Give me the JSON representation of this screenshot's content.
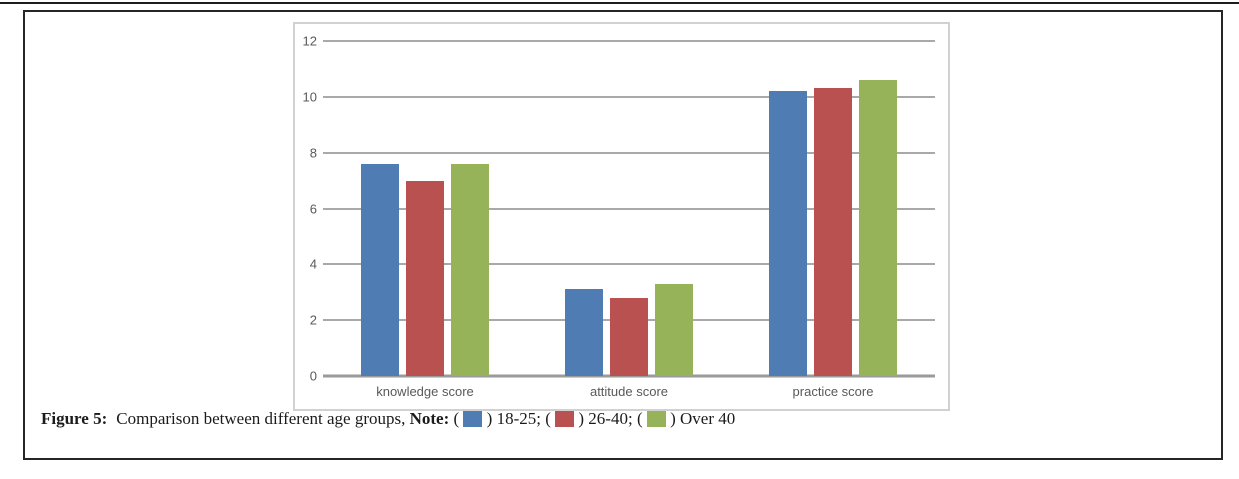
{
  "caption": {
    "figure_label": "Figure 5:",
    "description": "Comparison between different age groups,",
    "note_label": "Note:",
    "legend_items": [
      {
        "open": "( ",
        "close": " )",
        "label": "18-25",
        "trailing": ";",
        "color": "#4f7cb3"
      },
      {
        "open": "( ",
        "close": " )",
        "label": "26-40",
        "trailing": ";",
        "color": "#b85150"
      },
      {
        "open": "( ",
        "close": " )",
        "label": "Over 40",
        "trailing": "",
        "color": "#96b35a"
      }
    ]
  },
  "chart_data": {
    "type": "bar",
    "title": "",
    "xlabel": "",
    "ylabel": "",
    "categories": [
      "knowledge score",
      "attitude score",
      "practice score"
    ],
    "series": [
      {
        "name": "18-25",
        "color": "#4f7cb3",
        "values": [
          7.6,
          3.1,
          10.2
        ]
      },
      {
        "name": "26-40",
        "color": "#b85150",
        "values": [
          7.0,
          2.8,
          10.3
        ]
      },
      {
        "name": "Over 40",
        "color": "#96b35a",
        "values": [
          7.6,
          3.3,
          10.6
        ]
      }
    ],
    "ylim": [
      0,
      12
    ],
    "yticks": [
      12,
      10,
      8,
      6,
      4,
      2,
      0
    ],
    "grid": true,
    "legend_position": "caption-below",
    "colors": {
      "gridline": "#a9a9a9",
      "axis_line": "#9a9a9a",
      "axis_text": "#595959",
      "panel_border": "#d2d0d0",
      "figure_border": "#262626"
    }
  }
}
